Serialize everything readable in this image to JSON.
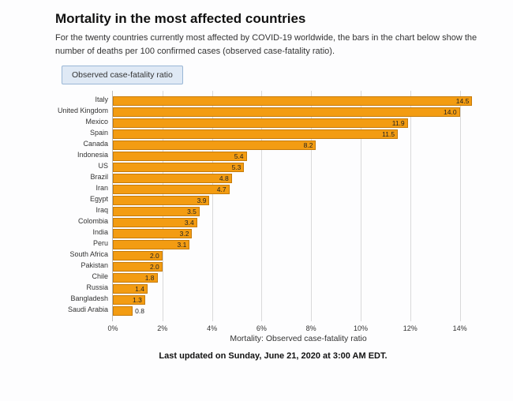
{
  "header": {
    "title": "Mortality in the most affected countries",
    "subtitle": "For the twenty countries currently most affected by COVID-19 worldwide, the bars in the chart below show the number of deaths per 100 confirmed cases (observed case-fatality ratio)."
  },
  "legend": {
    "label": "Observed case-fatality ratio",
    "border_color": "#9ab7d6",
    "fill_color": "#dfe9f5"
  },
  "chart": {
    "type": "horizontal-bar",
    "x_axis_title": "Mortality: Observed case-fatality ratio",
    "xlim": [
      0,
      15
    ],
    "xticks": [
      0,
      2,
      4,
      6,
      8,
      10,
      12,
      14
    ],
    "xtick_suffix": "%",
    "bar_fill": "#f39c12",
    "bar_border": "#c57b0b",
    "grid_color": "#bbbbbb",
    "background": "#fdfdfe",
    "rows": [
      {
        "country": "Italy",
        "value": 14.5,
        "label": "14.5"
      },
      {
        "country": "United Kingdom",
        "value": 14.0,
        "label": "14.0"
      },
      {
        "country": "Mexico",
        "value": 11.9,
        "label": "11.9"
      },
      {
        "country": "Spain",
        "value": 11.5,
        "label": "11.5"
      },
      {
        "country": "Canada",
        "value": 8.2,
        "label": "8.2"
      },
      {
        "country": "Indonesia",
        "value": 5.4,
        "label": "5.4"
      },
      {
        "country": "US",
        "value": 5.3,
        "label": "5.3"
      },
      {
        "country": "Brazil",
        "value": 4.8,
        "label": "4.8"
      },
      {
        "country": "Iran",
        "value": 4.7,
        "label": "4.7"
      },
      {
        "country": "Egypt",
        "value": 3.9,
        "label": "3.9"
      },
      {
        "country": "Iraq",
        "value": 3.5,
        "label": "3.5"
      },
      {
        "country": "Colombia",
        "value": 3.4,
        "label": "3.4"
      },
      {
        "country": "India",
        "value": 3.2,
        "label": "3.2"
      },
      {
        "country": "Peru",
        "value": 3.1,
        "label": "3.1"
      },
      {
        "country": "South Africa",
        "value": 2.0,
        "label": "2.0"
      },
      {
        "country": "Pakistan",
        "value": 2.0,
        "label": "2.0"
      },
      {
        "country": "Chile",
        "value": 1.8,
        "label": "1.8"
      },
      {
        "country": "Russia",
        "value": 1.4,
        "label": "1.4"
      },
      {
        "country": "Bangladesh",
        "value": 1.3,
        "label": "1.3"
      },
      {
        "country": "Saudi Arabia",
        "value": 0.8,
        "label": "0.8"
      }
    ]
  },
  "footer": {
    "text": "Last updated on Sunday, June 21, 2020 at 3:00 AM EDT."
  }
}
